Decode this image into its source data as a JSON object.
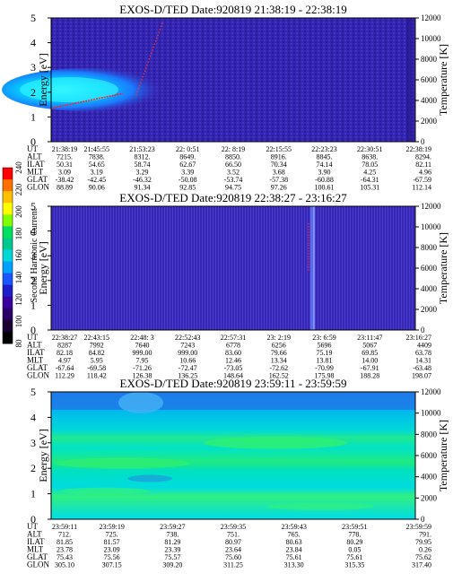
{
  "colorbar": {
    "title": "Second Harmonic Current",
    "ticks": [
      "80",
      "100",
      "120",
      "140",
      "160",
      "180",
      "200",
      "220",
      "240"
    ],
    "colors": [
      "#000000",
      "#1a0033",
      "#2a0066",
      "#3a00a0",
      "#1e1ec8",
      "#1a55ff",
      "#00a0ff",
      "#00d8d8",
      "#00c890",
      "#00e060",
      "#7fff00",
      "#ffff00",
      "#ffc000",
      "#ff7000",
      "#ff0000"
    ]
  },
  "chart_data": [
    {
      "type": "heatmap",
      "title": "EXOS-D/TED  Date:920819  21:38:19 - 22:38:19",
      "ylabel": "Energy [eV]",
      "y2label": "Temperature [K]",
      "ylim": [
        0,
        5
      ],
      "y2lim": [
        0,
        12000
      ],
      "yticks": [
        "0",
        "1",
        "2",
        "3",
        "4",
        "5"
      ],
      "y2ticks": [
        "0",
        "2000",
        "4000",
        "6000",
        "8000",
        "10000",
        "12000"
      ],
      "background": "#3a2ab8",
      "features": [
        "cyan-blob-2.0eV-start",
        "red-temperature-trace",
        "dark-column-end"
      ],
      "table": {
        "row_labels": [
          "UT",
          "ALT",
          "ILAT",
          "MLT",
          "GLAT",
          "GLON"
        ],
        "columns": [
          [
            "21:38:19",
            "7215.",
            "50.31",
            "3.09",
            "-38.42",
            "88.89"
          ],
          [
            "21:45:55",
            "7838.",
            "54.65",
            "3.19",
            "-42.45",
            "90.06"
          ],
          [
            "21:53:23",
            "8312.",
            "58.74",
            "3.29",
            "-46.32",
            "91.34"
          ],
          [
            "22: 0:51",
            "8649.",
            "62.67",
            "3.39",
            "-50.08",
            "92.85"
          ],
          [
            "22: 8:19",
            "8850.",
            "66.50",
            "3.52",
            "-53.74",
            "94.75"
          ],
          [
            "22:15:55",
            "8916.",
            "70.34",
            "3.68",
            "-57.38",
            "97.26"
          ],
          [
            "22:23:23",
            "8845.",
            "74.14",
            "3.90",
            "-60.88",
            "100.61"
          ],
          [
            "22:30:51",
            "8638.",
            "78.05",
            "4.25",
            "-64.31",
            "105.31"
          ],
          [
            "22:38:19",
            "8294.",
            "82.11",
            "4.96",
            "-67.59",
            "112.14"
          ]
        ]
      }
    },
    {
      "type": "heatmap",
      "title": "EXOS-D/TED  Date:920819  22:38:27 - 23:16:27",
      "ylabel": "Energy [eV]",
      "y2label": "Temperature [K]",
      "ylim": [
        0,
        5
      ],
      "y2lim": [
        0,
        12000
      ],
      "yticks": [
        "0",
        "1",
        "2",
        "3",
        "4",
        "5"
      ],
      "y2ticks": [
        "0",
        "2000",
        "4000",
        "6000",
        "8000",
        "10000",
        "12000"
      ],
      "background": "#3a2ab8",
      "features": [
        "bright-stripe-23:06",
        "red-trace-23:03"
      ],
      "table": {
        "row_labels": [
          "UT",
          "ALT",
          "ILAT",
          "MLT",
          "GLAT",
          "GLON"
        ],
        "columns": [
          [
            "22:38:27",
            "8287",
            "82.18",
            "4.97",
            "-67.64",
            "112.29"
          ],
          [
            "22:43:15",
            "7992",
            "84.82",
            "5.95",
            "-69.58",
            "118.42"
          ],
          [
            "22:48: 3",
            "7640",
            "999.00",
            "7.95",
            "-71.26",
            "126.38"
          ],
          [
            "22:52:43",
            "7243",
            "999.00",
            "10.66",
            "-72.47",
            "136.25"
          ],
          [
            "22:57:31",
            "6778",
            "83.60",
            "12.46",
            "-73.05",
            "148.64"
          ],
          [
            "23: 2:19",
            "6256",
            "79.66",
            "13.34",
            "-72.62",
            "162.52"
          ],
          [
            "23: 6:59",
            "5696",
            "75.19",
            "13.81",
            "-70.99",
            "175.98"
          ],
          [
            "23:11:47",
            "5067",
            "69.85",
            "14.00",
            "-67.91",
            "188.28"
          ],
          [
            "23:16:27",
            "4409",
            "63.78",
            "14.31",
            "-63.48",
            "198.07"
          ]
        ]
      }
    },
    {
      "type": "heatmap",
      "title": "EXOS-D/TED  Date:920819  23:59:11 - 23:59:59",
      "ylabel": "Energy [eV]",
      "y2label": "Temperature [K]",
      "ylim": [
        0,
        5
      ],
      "y2lim": [
        0,
        12000
      ],
      "yticks": [
        "0",
        "1",
        "2",
        "3",
        "4",
        "5"
      ],
      "y2ticks": [
        "0",
        "2000",
        "4000",
        "6000",
        "8000",
        "10000",
        "12000"
      ],
      "background": "#00c8e0",
      "features": [
        "green-band-2.0eV",
        "green-band-3.0eV",
        "blue-top-4.5eV"
      ],
      "table": {
        "row_labels": [
          "UT",
          "ALT",
          "ILAT",
          "MLT",
          "GLAT",
          "GLON"
        ],
        "columns": [
          [
            "23:59:11",
            "712.",
            "81.85",
            "23.78",
            "75.43",
            "305.10"
          ],
          [
            "23:59:19",
            "725.",
            "81.57",
            "23.09",
            "75.56",
            "307.15"
          ],
          [
            "23:59:27",
            "738.",
            "81.29",
            "23.39",
            "75.57",
            "309.20"
          ],
          [
            "23:59:35",
            "751.",
            "80.97",
            "23.64",
            "75.60",
            "311.25"
          ],
          [
            "23:59:43",
            "765.",
            "80.63",
            "23.84",
            "75.61",
            "313.30"
          ],
          [
            "23:59:51",
            "778.",
            "80.29",
            "0.05",
            "75.61",
            "315.35"
          ],
          [
            "23:59:59",
            "791.",
            "79.95",
            "0.26",
            "75.62",
            "317.40"
          ]
        ]
      }
    }
  ]
}
